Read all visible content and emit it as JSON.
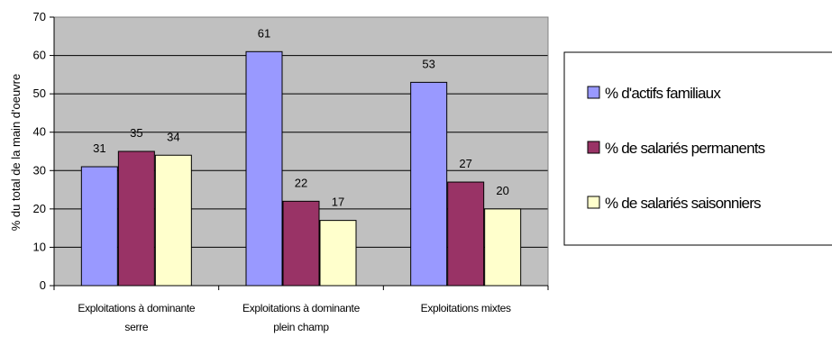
{
  "chart_data": {
    "type": "bar",
    "categories": [
      [
        "Exploitations à dominante",
        "serre"
      ],
      [
        "Exploitations à dominante",
        "plein champ"
      ],
      [
        "Exploitations mixtes"
      ]
    ],
    "series": [
      {
        "name": "% d'actifs familiaux",
        "values": [
          31,
          61,
          53
        ]
      },
      {
        "name": "% de salariés permanents",
        "values": [
          35,
          22,
          27
        ]
      },
      {
        "name": "% de salariés saisonniers",
        "values": [
          34,
          17,
          20
        ]
      }
    ],
    "data_labels": true,
    "ylabel": "% du total de la main d'oeuvre",
    "xlabel": "",
    "ylim": [
      0,
      70
    ],
    "yticks": [
      0,
      10,
      20,
      30,
      40,
      50,
      60,
      70
    ],
    "grid": true,
    "legend_position": "right",
    "colors": {
      "plot_background": "#c0c0c0",
      "series": [
        "#9999ff",
        "#993366",
        "#ffffcc"
      ],
      "gridline": "#000000"
    }
  }
}
